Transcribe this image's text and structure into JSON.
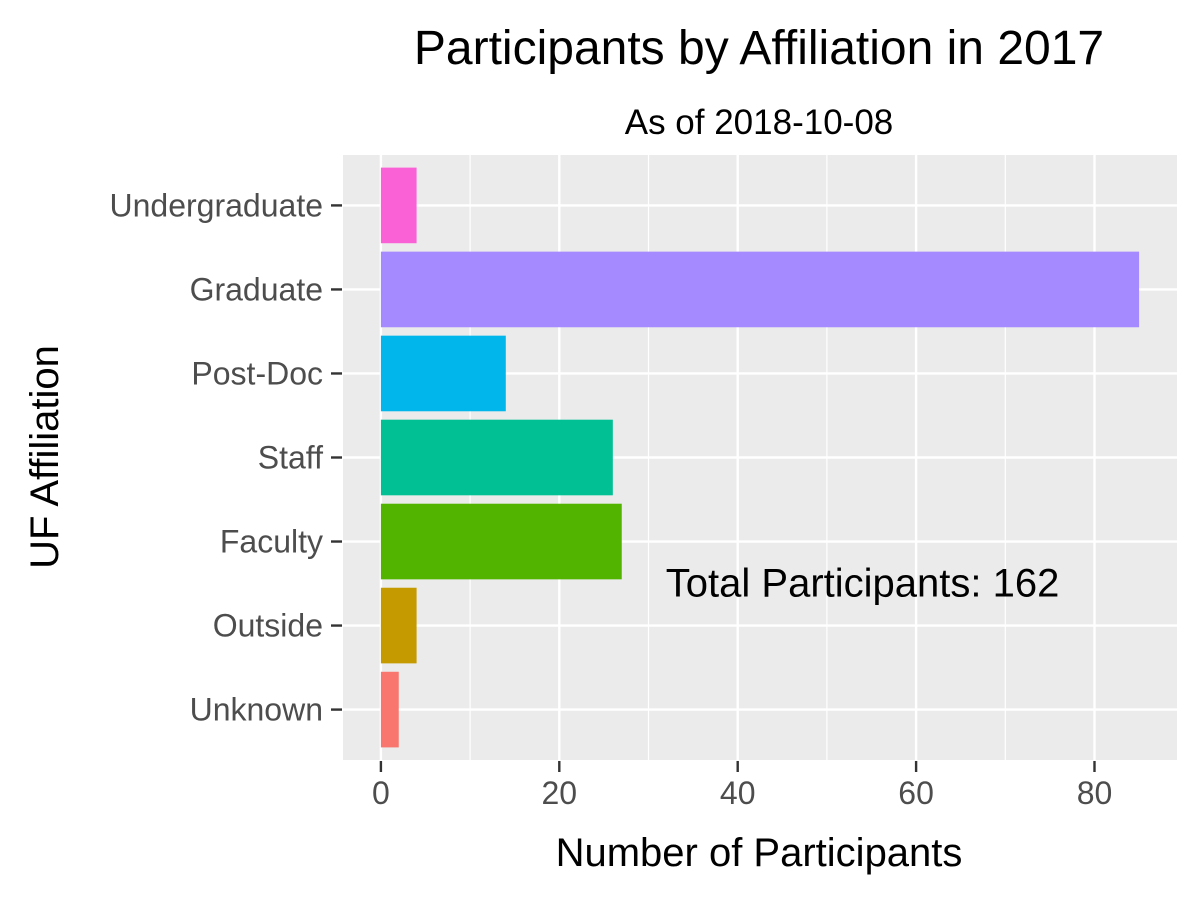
{
  "chart_data": {
    "type": "bar",
    "orientation": "horizontal",
    "title": "Participants by Affiliation in 2017",
    "subtitle": "As of 2018-10-08",
    "xlabel": "Number of Participants",
    "ylabel": "UF Affiliation",
    "categories": [
      "Unknown",
      "Outside",
      "Faculty",
      "Staff",
      "Post-Doc",
      "Graduate",
      "Undergraduate"
    ],
    "values": [
      2,
      4,
      27,
      26,
      14,
      85,
      4
    ],
    "colors": [
      "#F8766D",
      "#C49A00",
      "#53B400",
      "#00C094",
      "#00B6EB",
      "#A58AFF",
      "#FB61D7"
    ],
    "xlim": [
      -4.25,
      89.25
    ],
    "xticks": [
      0,
      20,
      40,
      60,
      80
    ],
    "xtick_labels": [
      "0",
      "20",
      "40",
      "60",
      "80"
    ],
    "grid": true,
    "legend": "none",
    "panel_background": "#EBEBEB",
    "annotation": {
      "text": "Total Participants: 162",
      "x": 54,
      "y": "Outside"
    }
  }
}
